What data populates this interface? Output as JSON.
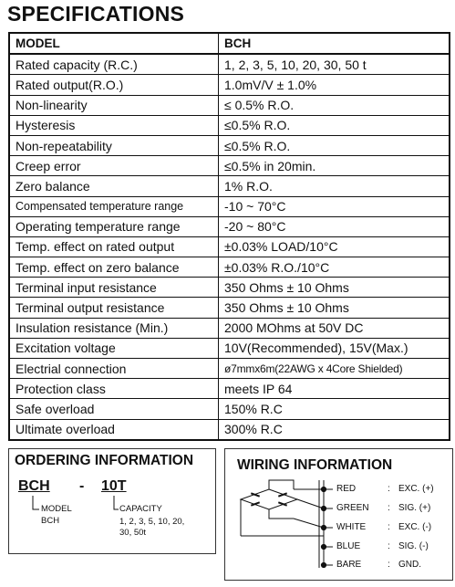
{
  "title": "SPECIFICATIONS",
  "spec": {
    "header": [
      "MODEL",
      "BCH"
    ],
    "rows": [
      {
        "label": "Rated capacity (R.C.)",
        "value": "1, 2, 3, 5, 10, 20, 30, 50 t"
      },
      {
        "label": "Rated output(R.O.)",
        "value": "1.0mV/V ± 1.0%"
      },
      {
        "label": "Non-linearity",
        "value": "≤ 0.5% R.O."
      },
      {
        "label": "Hysteresis",
        "value": "≤0.5% R.O."
      },
      {
        "label": "Non-repeatability",
        "value": "≤0.5% R.O."
      },
      {
        "label": "Creep error",
        "value": "≤0.5% in 20min."
      },
      {
        "label": "Zero balance",
        "value": "1% R.O."
      },
      {
        "label": "Compensated temperature range",
        "value": "-10 ~ 70°C"
      },
      {
        "label": "Operating temperature range",
        "value": "-20 ~ 80°C"
      },
      {
        "label": "Temp. effect on rated output",
        "value": "±0.03% LOAD/10°C"
      },
      {
        "label": "Temp. effect on zero balance",
        "value": "±0.03% R.O./10°C"
      },
      {
        "label": "Terminal input resistance",
        "value": "350 Ohms ± 10 Ohms"
      },
      {
        "label": "Terminal output resistance",
        "value": "350 Ohms ± 10 Ohms"
      },
      {
        "label": "Insulation resistance (Min.)",
        "value": "2000 MOhms at 50V DC"
      },
      {
        "label": "Excitation voltage",
        "value": "10V(Recommended), 15V(Max.)"
      },
      {
        "label": "Electrial connection",
        "value": "ø7mmx6m(22AWG x 4Core Shielded)"
      },
      {
        "label": "Protection class",
        "value": "meets IP 64"
      },
      {
        "label": "Safe overload",
        "value": "150% R.C"
      },
      {
        "label": "Ultimate overload",
        "value": "300% R.C"
      }
    ]
  },
  "ordering": {
    "title": "ORDERING INFORMATION",
    "model_code": "BCH",
    "dash": "-",
    "capacity_code": "10T",
    "model_label": "MODEL",
    "model_value": "BCH",
    "capacity_label": "CAPACITY",
    "capacity_values_1": "1, 2, 3, 5, 10, 20,",
    "capacity_values_2": "30, 50t"
  },
  "wiring": {
    "title": "WIRING INFORMATION",
    "wires": [
      {
        "color": "RED",
        "sep": ":",
        "signal": "EXC. (+)"
      },
      {
        "color": "GREEN",
        "sep": ":",
        "signal": "SIG. (+)"
      },
      {
        "color": "WHITE",
        "sep": ":",
        "signal": "EXC. (-)"
      },
      {
        "color": "BLUE",
        "sep": ":",
        "signal": "SIG. (-)"
      },
      {
        "color": "BARE",
        "sep": ":",
        "signal": "GND."
      }
    ]
  }
}
